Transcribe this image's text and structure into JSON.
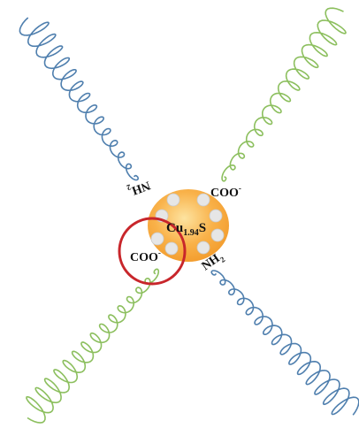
{
  "particle": {
    "label": {
      "base": "Cu",
      "sub": "1.94",
      "tail": "S"
    }
  },
  "ligands": [
    {
      "base": "NH",
      "sub": "2"
    },
    {
      "base": "COO",
      "sup": "-"
    },
    {
      "base": "COO",
      "sup": "-"
    },
    {
      "base": "NH",
      "sub": "2"
    }
  ]
}
